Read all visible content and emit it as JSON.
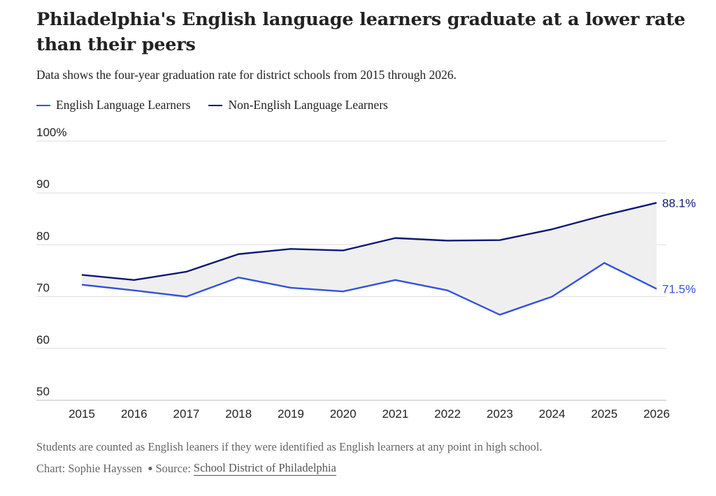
{
  "header": {
    "title": "Philadelphia's English language learners graduate at a lower rate than their peers",
    "subtitle": "Data shows the four-year graduation rate for district schools from 2015 through 2026."
  },
  "legend": [
    {
      "label": "English Language Learners",
      "color": "#3352e0"
    },
    {
      "label": "Non-English Language Learners",
      "color": "#0d1875"
    }
  ],
  "footer": {
    "note": "Students are counted as English leaners if they were identified as English learners at any point in high school.",
    "chart_credit": "Chart: Sophie Hayssen",
    "source_prefix": "Source:",
    "source_link": "School District of Philadelphia"
  },
  "chart_data": {
    "type": "line",
    "x": [
      "2015",
      "2016",
      "2017",
      "2018",
      "2019",
      "2020",
      "2021",
      "2022",
      "2023",
      "2024",
      "2025",
      "2026"
    ],
    "series": [
      {
        "name": "English Language Learners",
        "color": "#3352e0",
        "values": [
          72.3,
          71.2,
          70.0,
          73.7,
          71.7,
          71.0,
          73.2,
          71.2,
          66.5,
          70.0,
          76.5,
          71.5
        ],
        "end_label": "71.5%"
      },
      {
        "name": "Non-English Language Learners",
        "color": "#0d1875",
        "values": [
          74.2,
          73.2,
          74.8,
          78.2,
          79.2,
          78.9,
          81.3,
          80.8,
          80.9,
          83.0,
          85.7,
          88.1
        ],
        "end_label": "88.1%"
      }
    ],
    "y_ticks": [
      "100%",
      "90",
      "80",
      "70",
      "60",
      "50"
    ],
    "ylim": [
      50,
      100
    ],
    "gap_fill": "#efefef",
    "grid": true
  }
}
